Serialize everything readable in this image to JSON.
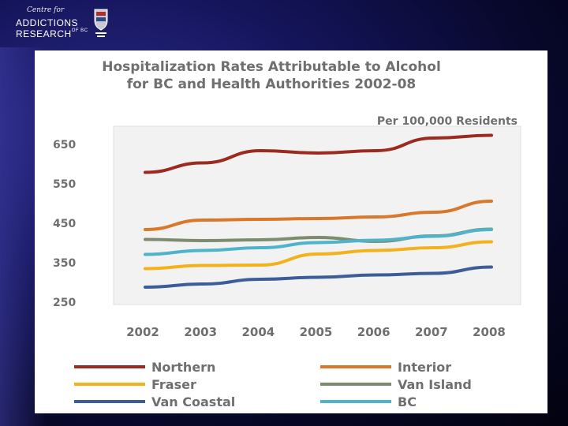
{
  "header": {
    "logo_script": "Centre for",
    "logo_line1": "ADDICTIONS",
    "logo_line2": "RESEARCH",
    "logo_sup": "OF BC"
  },
  "chart_data": {
    "type": "line",
    "title_line1": "Hospitalization  Rates Attributable to Alcohol",
    "title_line2": "for BC and Health  Authorities 2002-08",
    "unit_label": "Per 100,000  Residents",
    "x": [
      "2002",
      "2003",
      "2004",
      "2005",
      "2006",
      "2007",
      "2008"
    ],
    "ylim": [
      250,
      650
    ],
    "yticks": [
      650,
      550,
      450,
      350,
      250
    ],
    "grid": false,
    "legend_position": "bottom",
    "series": [
      {
        "name": "Northern",
        "color": "#9b2a1f",
        "values": [
          579,
          603,
          634,
          628,
          634,
          666,
          673
        ]
      },
      {
        "name": "Interior",
        "color": "#d9782b",
        "values": [
          434,
          458,
          460,
          462,
          466,
          478,
          506
        ]
      },
      {
        "name": "Fraser",
        "color": "#f2b21c",
        "values": [
          335,
          343,
          344,
          372,
          381,
          388,
          403
        ]
      },
      {
        "name": "Van Island",
        "color": "#7d8c6e",
        "values": [
          409,
          406,
          408,
          414,
          404,
          418,
          435
        ]
      },
      {
        "name": "Van Coastal",
        "color": "#3c5d98",
        "values": [
          288,
          296,
          308,
          313,
          319,
          323,
          339
        ]
      },
      {
        "name": "BC",
        "color": "#4fb4c9",
        "values": [
          371,
          381,
          388,
          401,
          407,
          417,
          434
        ]
      }
    ]
  }
}
